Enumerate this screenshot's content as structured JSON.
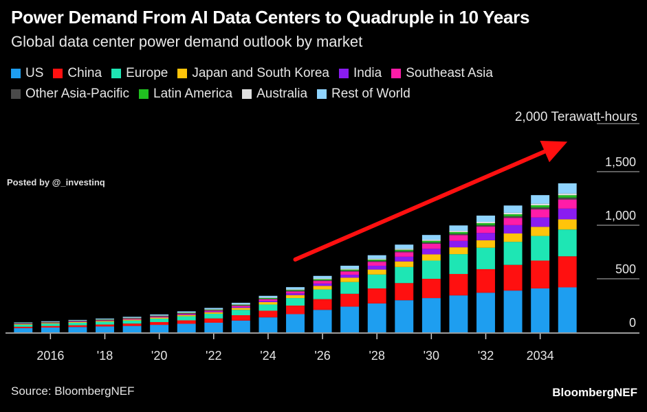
{
  "header": {
    "title": "Power Demand From AI Data Centers to Quadruple in 10 Years",
    "subtitle": "Global data center power demand outlook by market"
  },
  "watermark": "Posted by @_investinq",
  "footer": {
    "source": "Source: BloombergNEF",
    "brand": "BloombergNEF"
  },
  "chart_data": {
    "type": "bar",
    "stacked": true,
    "unit_label": "2,000 Terawatt-hours",
    "ylim": [
      0,
      2000
    ],
    "y_ticks": [
      {
        "value": 0,
        "label": "0"
      },
      {
        "value": 500,
        "label": "500"
      },
      {
        "value": 1000,
        "label": "1,000"
      },
      {
        "value": 1500,
        "label": "1,500"
      }
    ],
    "categories": [
      "2015",
      "2016",
      "2017",
      "2018",
      "2019",
      "2020",
      "2021",
      "2022",
      "2023",
      "2024",
      "2025",
      "2026",
      "2027",
      "2028",
      "2029",
      "2030",
      "2031",
      "2032",
      "2033",
      "2034",
      "2035"
    ],
    "x_ticks": [
      {
        "value": "2016",
        "label": "2016"
      },
      {
        "value": "2018",
        "label": "'18"
      },
      {
        "value": "2020",
        "label": "'20"
      },
      {
        "value": "2022",
        "label": "'22"
      },
      {
        "value": "2024",
        "label": "'24"
      },
      {
        "value": "2026",
        "label": "'26"
      },
      {
        "value": "2028",
        "label": "'28"
      },
      {
        "value": "2030",
        "label": "'30"
      },
      {
        "value": "2032",
        "label": "'32"
      },
      {
        "value": "2034",
        "label": "2034"
      }
    ],
    "series": [
      {
        "name": "US",
        "color": "#1e9ef0",
        "values": [
          40,
          45,
          50,
          55,
          60,
          70,
          80,
          90,
          110,
          140,
          170,
          210,
          240,
          270,
          300,
          320,
          345,
          370,
          390,
          410,
          420
        ]
      },
      {
        "name": "China",
        "color": "#ff1010",
        "values": [
          12,
          14,
          16,
          18,
          22,
          26,
          32,
          40,
          50,
          62,
          80,
          100,
          120,
          140,
          160,
          180,
          200,
          220,
          240,
          260,
          290
        ]
      },
      {
        "name": "Europe",
        "color": "#1ee6b4",
        "values": [
          20,
          22,
          24,
          26,
          28,
          32,
          38,
          44,
          50,
          58,
          70,
          90,
          110,
          130,
          150,
          170,
          185,
          200,
          215,
          230,
          250
        ]
      },
      {
        "name": "Japan and South Korea",
        "color": "#ffc40a",
        "values": [
          5,
          6,
          7,
          8,
          9,
          10,
          12,
          14,
          18,
          22,
          28,
          34,
          40,
          46,
          52,
          58,
          64,
          70,
          78,
          85,
          95
        ]
      },
      {
        "name": "India",
        "color": "#8a1cf0",
        "values": [
          2,
          2,
          3,
          3,
          4,
          5,
          6,
          7,
          9,
          12,
          16,
          22,
          28,
          36,
          44,
          52,
          60,
          68,
          78,
          88,
          100
        ]
      },
      {
        "name": "Southeast Asia",
        "color": "#ff1ca8",
        "values": [
          3,
          3,
          4,
          4,
          5,
          6,
          7,
          9,
          11,
          14,
          18,
          24,
          30,
          36,
          42,
          48,
          54,
          60,
          68,
          76,
          85
        ]
      },
      {
        "name": "Other Asia-Pacific",
        "color": "#4a4a4a",
        "values": [
          2,
          2,
          2,
          3,
          3,
          3,
          4,
          4,
          5,
          6,
          7,
          8,
          9,
          10,
          11,
          12,
          13,
          14,
          15,
          17,
          18
        ]
      },
      {
        "name": "Latin America",
        "color": "#20c020",
        "values": [
          2,
          2,
          2,
          3,
          3,
          3,
          4,
          4,
          5,
          6,
          7,
          8,
          9,
          11,
          12,
          14,
          15,
          17,
          18,
          20,
          22
        ]
      },
      {
        "name": "Australia",
        "color": "#e0e0e0",
        "values": [
          2,
          2,
          2,
          2,
          3,
          3,
          3,
          4,
          4,
          5,
          6,
          7,
          8,
          9,
          10,
          11,
          12,
          13,
          14,
          15,
          16
        ]
      },
      {
        "name": "Rest of World",
        "color": "#8fd4ff",
        "values": [
          5,
          6,
          6,
          7,
          8,
          9,
          10,
          12,
          14,
          16,
          20,
          24,
          28,
          32,
          38,
          44,
          50,
          58,
          68,
          80,
          95
        ]
      }
    ],
    "trend_arrow": {
      "color": "#ff1010",
      "from": {
        "x": "2025",
        "y": 680
      },
      "to": {
        "x": "2034",
        "y": 1780
      }
    },
    "grid": false,
    "legend_position": "top"
  }
}
